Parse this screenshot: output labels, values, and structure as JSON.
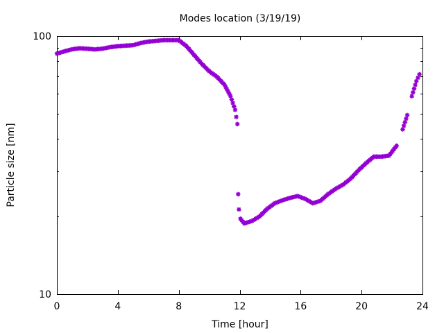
{
  "chart_data": {
    "type": "scatter",
    "title": "Modes location (3/19/19)",
    "xlabel": "Time [hour]",
    "ylabel": "Particle size [nm]",
    "xlim": [
      0,
      24
    ],
    "ylim": [
      10,
      100
    ],
    "yscale": "log",
    "x_ticks": [
      0,
      4,
      8,
      12,
      16,
      20,
      24
    ],
    "y_ticks_labeled": [
      10,
      100
    ],
    "marker_color": "#9400D3",
    "marker": "asterisk",
    "grid": false,
    "legend": "none",
    "points": [
      [
        0.0,
        85.5
      ],
      [
        0.5,
        87.3
      ],
      [
        1.0,
        88.9
      ],
      [
        1.5,
        89.7
      ],
      [
        2.0,
        89.3
      ],
      [
        2.5,
        88.8
      ],
      [
        3.0,
        89.4
      ],
      [
        3.5,
        90.6
      ],
      [
        4.0,
        91.4
      ],
      [
        4.5,
        91.8
      ],
      [
        5.0,
        92.2
      ],
      [
        5.5,
        94.0
      ],
      [
        6.0,
        95.2
      ],
      [
        6.5,
        95.8
      ],
      [
        7.0,
        96.4
      ],
      [
        7.5,
        96.4
      ],
      [
        8.0,
        96.4
      ],
      [
        8.5,
        91.5
      ],
      [
        9.0,
        84.6
      ],
      [
        9.5,
        78.2
      ],
      [
        10.0,
        73.1
      ],
      [
        10.5,
        69.6
      ],
      [
        11.0,
        64.8
      ],
      [
        11.4,
        58.5
      ],
      [
        11.7,
        51.8
      ],
      [
        11.85,
        45.6
      ],
      [
        11.9,
        24.4
      ],
      [
        11.95,
        21.3
      ],
      [
        12.05,
        19.6
      ],
      [
        12.3,
        18.8
      ],
      [
        12.8,
        19.2
      ],
      [
        13.3,
        20.0
      ],
      [
        13.8,
        21.4
      ],
      [
        14.3,
        22.5
      ],
      [
        14.8,
        23.1
      ],
      [
        15.3,
        23.6
      ],
      [
        15.8,
        24.0
      ],
      [
        16.3,
        23.4
      ],
      [
        16.8,
        22.5
      ],
      [
        17.3,
        23.0
      ],
      [
        17.8,
        24.4
      ],
      [
        18.3,
        25.6
      ],
      [
        18.8,
        26.6
      ],
      [
        19.3,
        28.1
      ],
      [
        19.8,
        30.2
      ],
      [
        20.3,
        32.2
      ],
      [
        20.8,
        34.1
      ],
      [
        21.3,
        34.1
      ],
      [
        21.8,
        34.4
      ],
      [
        22.3,
        37.6
      ],
      [
        22.7,
        43.5
      ],
      [
        23.0,
        49.4
      ],
      [
        23.3,
        58.5
      ],
      [
        23.6,
        66.9
      ],
      [
        23.8,
        71.1
      ]
    ]
  }
}
